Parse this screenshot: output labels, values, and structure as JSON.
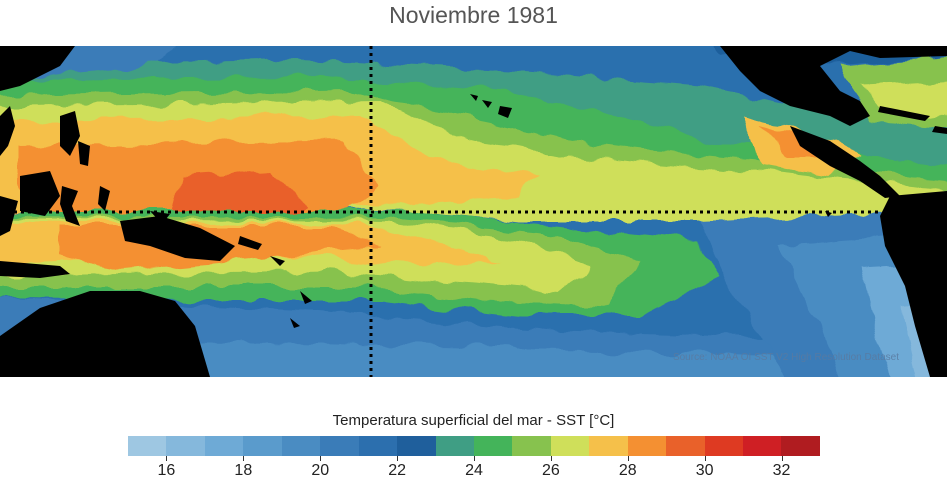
{
  "title": "Noviembre 1981",
  "credit": "Source: NOAA OI SST V2 High Resolution Dataset",
  "colorbar": {
    "title": "Temperatura superficial del mar - SST  [°C]",
    "colors": [
      "#9ec7e2",
      "#85b8dc",
      "#6eaad6",
      "#5a9bcc",
      "#4a8cc2",
      "#3a7cb8",
      "#2c6fae",
      "#1f5f9c",
      "#3f9e84",
      "#44b45a",
      "#87c24e",
      "#cfdf5a",
      "#f5c04a",
      "#f49032",
      "#e9612a",
      "#de3a22",
      "#cf1f24",
      "#b01c20"
    ],
    "tick_values": [
      16,
      18,
      20,
      22,
      24,
      26,
      28,
      30,
      32
    ],
    "range": [
      15,
      33
    ]
  },
  "overlay": {
    "equator_line": true,
    "meridian_line": true
  }
}
